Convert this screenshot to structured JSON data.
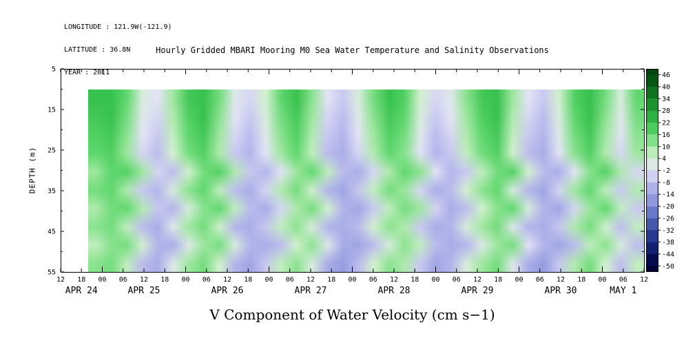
{
  "meta": {
    "longitude": "LONGITUDE : 121.9W(-121.9)",
    "latitude": "LATITUDE : 36.8N",
    "year": "YEAR : 2011"
  },
  "title": "Hourly Gridded MBARI Mooring M0 Sea Water Temperature and Salinity Observations",
  "chart_data": {
    "type": "heatmap",
    "title": "Hourly Gridded MBARI Mooring M0 Sea Water Temperature and Salinity Observations",
    "xlabel": "",
    "ylabel": "DEPTH (m)",
    "footer_label": "V Component of Water Velocity (cm s−1)",
    "time_span_hours": 168,
    "x_tick_hours": [
      "12",
      "18",
      "00",
      "06",
      "12",
      "18",
      "00",
      "06",
      "12",
      "18",
      "00",
      "06",
      "12",
      "18",
      "00",
      "06",
      "12",
      "18",
      "00",
      "06",
      "12",
      "18",
      "00",
      "06",
      "12",
      "18",
      "00",
      "06",
      "12"
    ],
    "date_labels": [
      {
        "label": "APR 24",
        "t_center_hours": 6
      },
      {
        "label": "APR 25",
        "t_center_hours": 24
      },
      {
        "label": "APR 26",
        "t_center_hours": 48
      },
      {
        "label": "APR 27",
        "t_center_hours": 72
      },
      {
        "label": "APR 28",
        "t_center_hours": 96
      },
      {
        "label": "APR 29",
        "t_center_hours": 120
      },
      {
        "label": "APR 30",
        "t_center_hours": 144
      },
      {
        "label": "MAY 1",
        "t_center_hours": 162
      }
    ],
    "y_ticks": [
      5,
      15,
      25,
      35,
      45,
      55
    ],
    "depth_range": [
      5,
      55
    ],
    "data_window": {
      "t_start_hours": 8,
      "t_end_hours": 168,
      "depth_top": 10,
      "depth_bottom": 55
    },
    "colorbar": {
      "ticks": [
        46,
        40,
        34,
        28,
        22,
        16,
        10,
        4,
        -2,
        -8,
        -14,
        -20,
        -26,
        -32,
        -38,
        -44,
        -50
      ],
      "draw_range": [
        -53,
        49
      ],
      "stops": [
        [
          -50,
          "#02023a"
        ],
        [
          -44,
          "#0a1464"
        ],
        [
          -38,
          "#1b2d82"
        ],
        [
          -32,
          "#3349a0"
        ],
        [
          -26,
          "#5668ba"
        ],
        [
          -20,
          "#7e8ad6"
        ],
        [
          -14,
          "#a0a6e4"
        ],
        [
          -8,
          "#bcbcee"
        ],
        [
          -2,
          "#e4e4f7"
        ],
        [
          4,
          "#d4f2d0"
        ],
        [
          10,
          "#9fe89f"
        ],
        [
          16,
          "#5fd86e"
        ],
        [
          22,
          "#38c24e"
        ],
        [
          28,
          "#24a438"
        ],
        [
          34,
          "#148427"
        ],
        [
          40,
          "#086418"
        ],
        [
          46,
          "#02470e"
        ]
      ]
    },
    "grid": {
      "depths": [
        10,
        15,
        20,
        25,
        30,
        35,
        40,
        45,
        50,
        55
      ],
      "values": [
        [
          22,
          22,
          16,
          2,
          -2,
          10,
          20,
          22,
          14,
          0,
          -4,
          4,
          16,
          22,
          12,
          -2,
          -6,
          2,
          14,
          22,
          18,
          4,
          -4,
          0,
          12,
          20,
          22,
          10,
          -2,
          -6,
          4,
          18,
          22,
          14,
          2,
          16
        ],
        [
          20,
          22,
          14,
          0,
          -4,
          8,
          18,
          22,
          12,
          -2,
          -6,
          2,
          14,
          20,
          10,
          -4,
          -8,
          0,
          12,
          20,
          16,
          2,
          -6,
          -2,
          10,
          18,
          22,
          8,
          -4,
          -8,
          2,
          16,
          22,
          12,
          0,
          14
        ],
        [
          18,
          20,
          12,
          -2,
          -6,
          6,
          16,
          20,
          10,
          -4,
          -8,
          0,
          12,
          18,
          8,
          -6,
          -10,
          -2,
          10,
          18,
          14,
          0,
          -8,
          -4,
          8,
          16,
          20,
          6,
          -6,
          -10,
          0,
          14,
          20,
          10,
          -2,
          12
        ],
        [
          16,
          18,
          10,
          -4,
          -8,
          4,
          14,
          18,
          8,
          -6,
          -10,
          -2,
          10,
          16,
          6,
          -8,
          -12,
          -4,
          8,
          16,
          12,
          -2,
          -10,
          -6,
          6,
          14,
          18,
          4,
          -8,
          -12,
          -2,
          12,
          18,
          8,
          -4,
          10
        ],
        [
          10,
          16,
          18,
          10,
          -4,
          -8,
          4,
          14,
          18,
          8,
          -6,
          -10,
          -2,
          10,
          16,
          6,
          -8,
          -12,
          -4,
          8,
          16,
          12,
          -2,
          -10,
          -6,
          6,
          14,
          18,
          4,
          -8,
          -12,
          -2,
          12,
          18,
          8,
          -4
        ],
        [
          14,
          16,
          8,
          -6,
          -10,
          2,
          12,
          16,
          6,
          -8,
          -12,
          -4,
          8,
          14,
          4,
          -10,
          -14,
          -6,
          6,
          14,
          10,
          -4,
          -12,
          -8,
          4,
          12,
          16,
          2,
          -10,
          -14,
          -4,
          10,
          16,
          6,
          -6,
          8
        ],
        [
          8,
          14,
          16,
          8,
          -6,
          -10,
          2,
          12,
          16,
          6,
          -8,
          -12,
          -4,
          8,
          14,
          4,
          -10,
          -14,
          -6,
          6,
          14,
          10,
          -4,
          -12,
          -8,
          4,
          12,
          16,
          2,
          -10,
          -14,
          -4,
          10,
          16,
          6,
          -6
        ],
        [
          12,
          14,
          6,
          -8,
          -12,
          0,
          10,
          14,
          4,
          -10,
          -12,
          -6,
          6,
          12,
          2,
          -10,
          -12,
          -8,
          4,
          12,
          8,
          -6,
          -12,
          -10,
          2,
          10,
          14,
          0,
          -10,
          -12,
          -6,
          8,
          14,
          4,
          -8,
          6
        ],
        [
          6,
          12,
          14,
          4,
          -10,
          -12,
          0,
          10,
          14,
          2,
          -10,
          -12,
          -8,
          4,
          12,
          0,
          -12,
          -14,
          -8,
          2,
          12,
          6,
          -8,
          -12,
          -10,
          0,
          10,
          14,
          -2,
          -10,
          -14,
          -8,
          6,
          12,
          2,
          -8
        ],
        [
          12,
          14,
          6,
          -8,
          -12,
          0,
          10,
          14,
          4,
          -10,
          -14,
          -6,
          6,
          12,
          2,
          -12,
          -16,
          -8,
          4,
          12,
          8,
          -6,
          -14,
          -10,
          2,
          10,
          14,
          0,
          -12,
          -16,
          -6,
          8,
          14,
          4,
          -8,
          6
        ]
      ]
    }
  }
}
